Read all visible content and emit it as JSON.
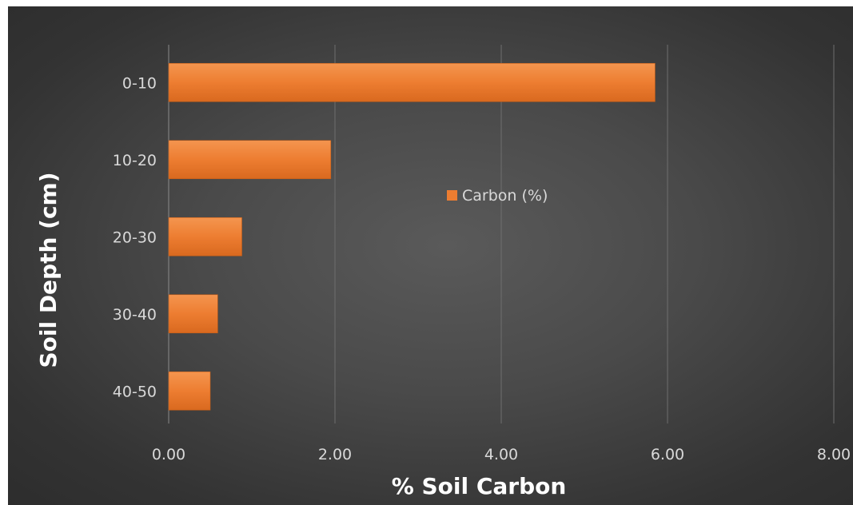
{
  "chart_data": {
    "type": "bar",
    "orientation": "horizontal",
    "categories": [
      "0-10",
      "10-20",
      "20-30",
      "30-40",
      "40-50"
    ],
    "series": [
      {
        "name": "Carbon (%)",
        "values": [
          5.85,
          1.95,
          0.88,
          0.59,
          0.5
        ]
      }
    ],
    "xlabel": "% Soil Carbon",
    "ylabel": "Soil Depth (cm)",
    "xlim": [
      0,
      8
    ],
    "xticks": [
      "0.00",
      "2.00",
      "4.00",
      "6.00",
      "8.00"
    ],
    "grid": "vertical",
    "legend": "center-right",
    "colors": {
      "bar": "#ed7d31",
      "background": "#404040",
      "gridline": "#6e6e6e",
      "text": "#d9d9d9"
    }
  }
}
